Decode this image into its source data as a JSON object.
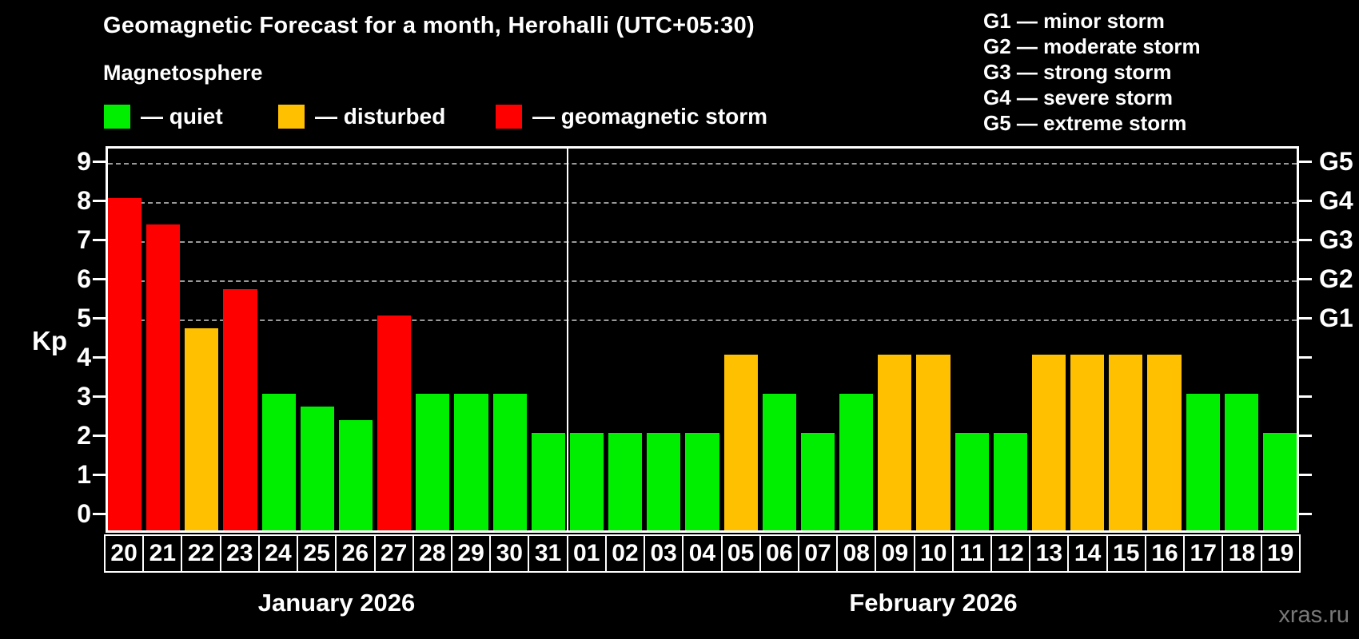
{
  "title": "Geomagnetic Forecast for a month, Herohalli (UTC+05:30)",
  "subtitle": "Magnetosphere",
  "legend": {
    "quiet": {
      "label": "— quiet",
      "color": "#00ef00"
    },
    "disturbed": {
      "label": "— disturbed",
      "color": "#ffc000"
    },
    "storm": {
      "label": "— geomagnetic storm",
      "color": "#ff0000"
    }
  },
  "g_legend": {
    "lines": [
      "G1 — minor storm",
      "G2 — moderate storm",
      "G3 — strong storm",
      "G4 — severe storm",
      "G5 — extreme storm"
    ]
  },
  "y_axis": {
    "label": "Kp",
    "ticks": [
      0,
      1,
      2,
      3,
      4,
      5,
      6,
      7,
      8,
      9
    ],
    "g_labels": [
      {
        "kp": 5,
        "text": "G1"
      },
      {
        "kp": 6,
        "text": "G2"
      },
      {
        "kp": 7,
        "text": "G3"
      },
      {
        "kp": 8,
        "text": "G4"
      },
      {
        "kp": 9,
        "text": "G5"
      }
    ]
  },
  "watermark": "xras.ru",
  "chart_data": {
    "type": "bar",
    "title": "Geomagnetic Forecast for a month, Herohalli (UTC+05:30)",
    "ylabel": "Kp",
    "ylim": [
      0,
      9
    ],
    "grid_levels": [
      5,
      6,
      7,
      8,
      9
    ],
    "grid_on": true,
    "months": [
      {
        "label": "January 2026"
      },
      {
        "label": "February 2026"
      }
    ],
    "bars": [
      {
        "month": 0,
        "day": "20",
        "value": 8,
        "status": "storm"
      },
      {
        "month": 0,
        "day": "21",
        "value": 7.33,
        "status": "storm"
      },
      {
        "month": 0,
        "day": "22",
        "value": 4.67,
        "status": "disturbed"
      },
      {
        "month": 0,
        "day": "23",
        "value": 5.67,
        "status": "storm"
      },
      {
        "month": 0,
        "day": "24",
        "value": 3,
        "status": "quiet"
      },
      {
        "month": 0,
        "day": "25",
        "value": 2.67,
        "status": "quiet"
      },
      {
        "month": 0,
        "day": "26",
        "value": 2.33,
        "status": "quiet"
      },
      {
        "month": 0,
        "day": "27",
        "value": 5,
        "status": "storm"
      },
      {
        "month": 0,
        "day": "28",
        "value": 3,
        "status": "quiet"
      },
      {
        "month": 0,
        "day": "29",
        "value": 3,
        "status": "quiet"
      },
      {
        "month": 0,
        "day": "30",
        "value": 3,
        "status": "quiet"
      },
      {
        "month": 0,
        "day": "31",
        "value": 2,
        "status": "quiet"
      },
      {
        "month": 1,
        "day": "01",
        "value": 2,
        "status": "quiet"
      },
      {
        "month": 1,
        "day": "02",
        "value": 2,
        "status": "quiet"
      },
      {
        "month": 1,
        "day": "03",
        "value": 2,
        "status": "quiet"
      },
      {
        "month": 1,
        "day": "04",
        "value": 2,
        "status": "quiet"
      },
      {
        "month": 1,
        "day": "05",
        "value": 4,
        "status": "disturbed"
      },
      {
        "month": 1,
        "day": "06",
        "value": 3,
        "status": "quiet"
      },
      {
        "month": 1,
        "day": "07",
        "value": 2,
        "status": "quiet"
      },
      {
        "month": 1,
        "day": "08",
        "value": 3,
        "status": "quiet"
      },
      {
        "month": 1,
        "day": "09",
        "value": 4,
        "status": "disturbed"
      },
      {
        "month": 1,
        "day": "10",
        "value": 4,
        "status": "disturbed"
      },
      {
        "month": 1,
        "day": "11",
        "value": 2,
        "status": "quiet"
      },
      {
        "month": 1,
        "day": "12",
        "value": 2,
        "status": "quiet"
      },
      {
        "month": 1,
        "day": "13",
        "value": 4,
        "status": "disturbed"
      },
      {
        "month": 1,
        "day": "14",
        "value": 4,
        "status": "disturbed"
      },
      {
        "month": 1,
        "day": "15",
        "value": 4,
        "status": "disturbed"
      },
      {
        "month": 1,
        "day": "16",
        "value": 4,
        "status": "disturbed"
      },
      {
        "month": 1,
        "day": "17",
        "value": 3,
        "status": "quiet"
      },
      {
        "month": 1,
        "day": "18",
        "value": 3,
        "status": "quiet"
      },
      {
        "month": 1,
        "day": "19",
        "value": 2,
        "status": "quiet"
      }
    ]
  }
}
